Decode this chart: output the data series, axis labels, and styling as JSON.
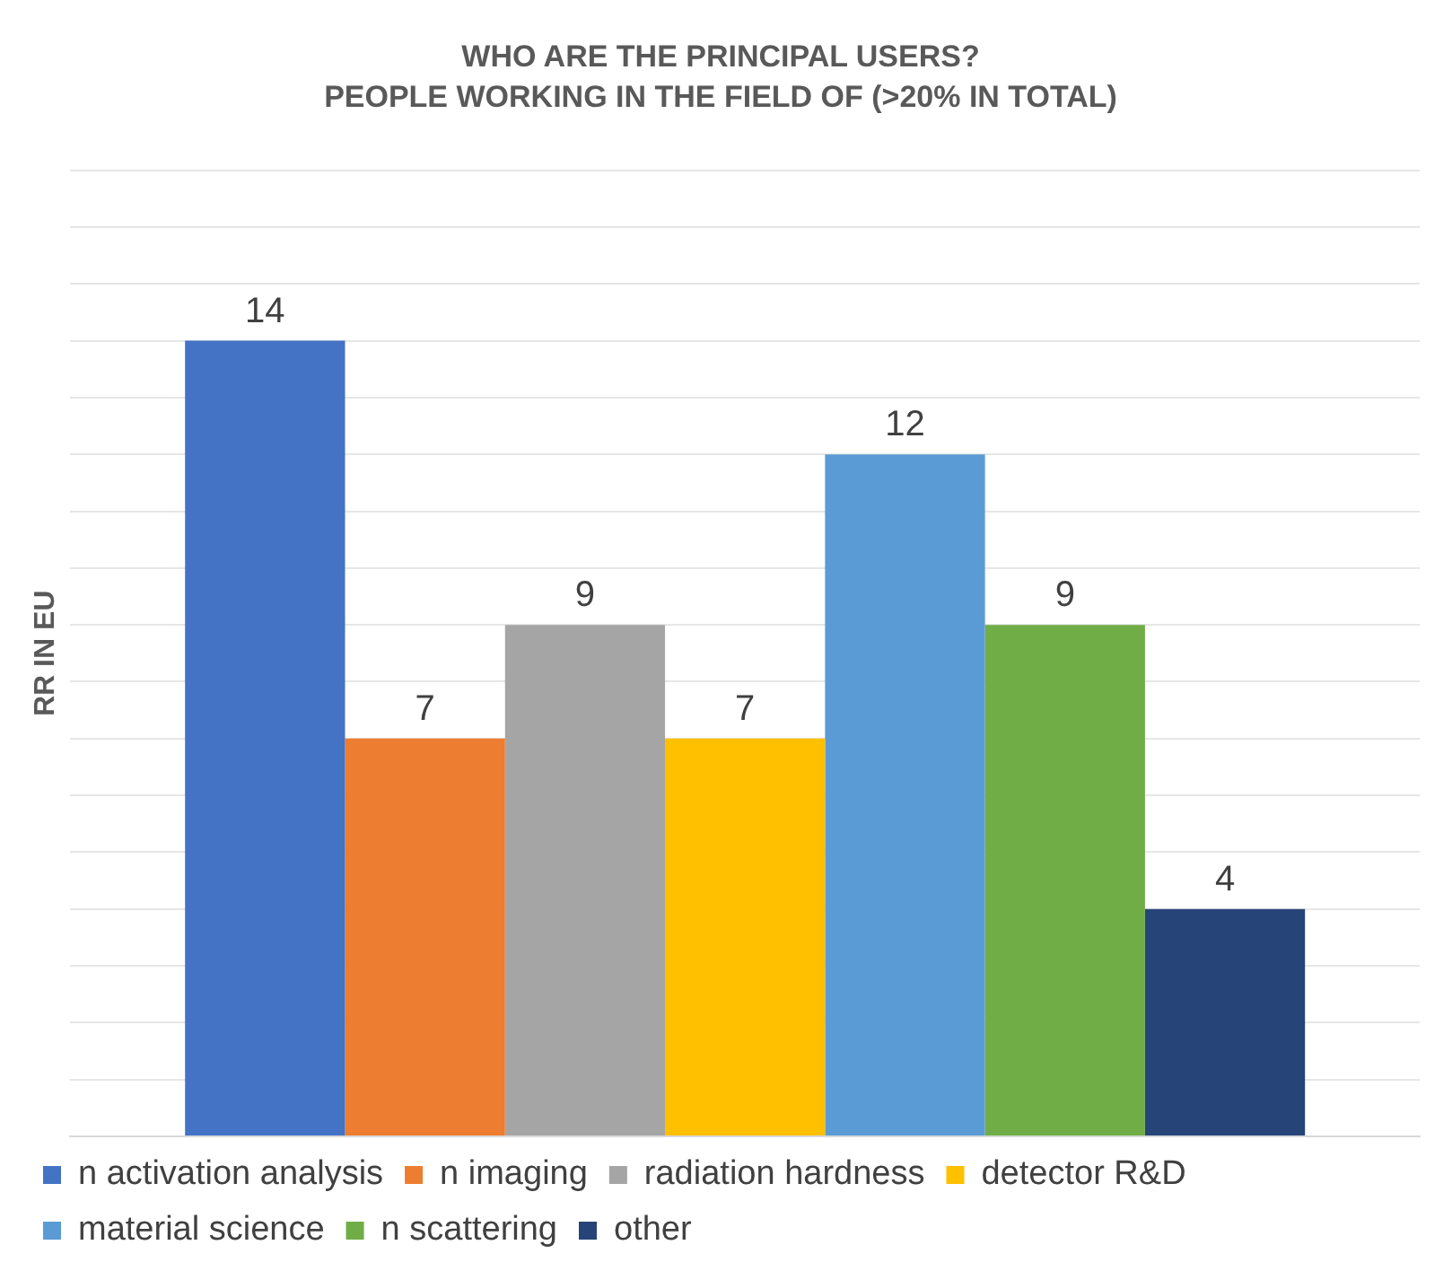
{
  "chart_data": {
    "type": "bar",
    "title": "WHO ARE THE PRINCIPAL USERS?",
    "subtitle": "PEOPLE WORKING IN THE FIELD OF (>20% IN TOTAL)",
    "ylabel": "RR IN EU",
    "categories": [
      null
    ],
    "series": [
      {
        "name": "n activation analysis",
        "color": "#4472c4",
        "values": [
          14
        ]
      },
      {
        "name": "n imaging",
        "color": "#ed7d31",
        "values": [
          7
        ]
      },
      {
        "name": "radiation hardness",
        "color": "#a5a5a5",
        "values": [
          9
        ]
      },
      {
        "name": "detector R&D",
        "color": "#ffc000",
        "values": [
          7
        ]
      },
      {
        "name": "material science",
        "color": "#5b9bd5",
        "values": [
          12
        ]
      },
      {
        "name": "n scattering",
        "color": "#70ad47",
        "values": [
          9
        ]
      },
      {
        "name": "other",
        "color": "#264478",
        "values": [
          4
        ]
      }
    ],
    "ylim": [
      0,
      17
    ],
    "yticks": [
      0,
      1,
      2,
      3,
      4,
      5,
      6,
      7,
      8,
      9,
      10,
      11,
      12,
      13,
      14,
      15,
      16,
      17
    ],
    "tick_labels": false,
    "grid": "y",
    "legend": "bottom",
    "data_labels": true
  }
}
